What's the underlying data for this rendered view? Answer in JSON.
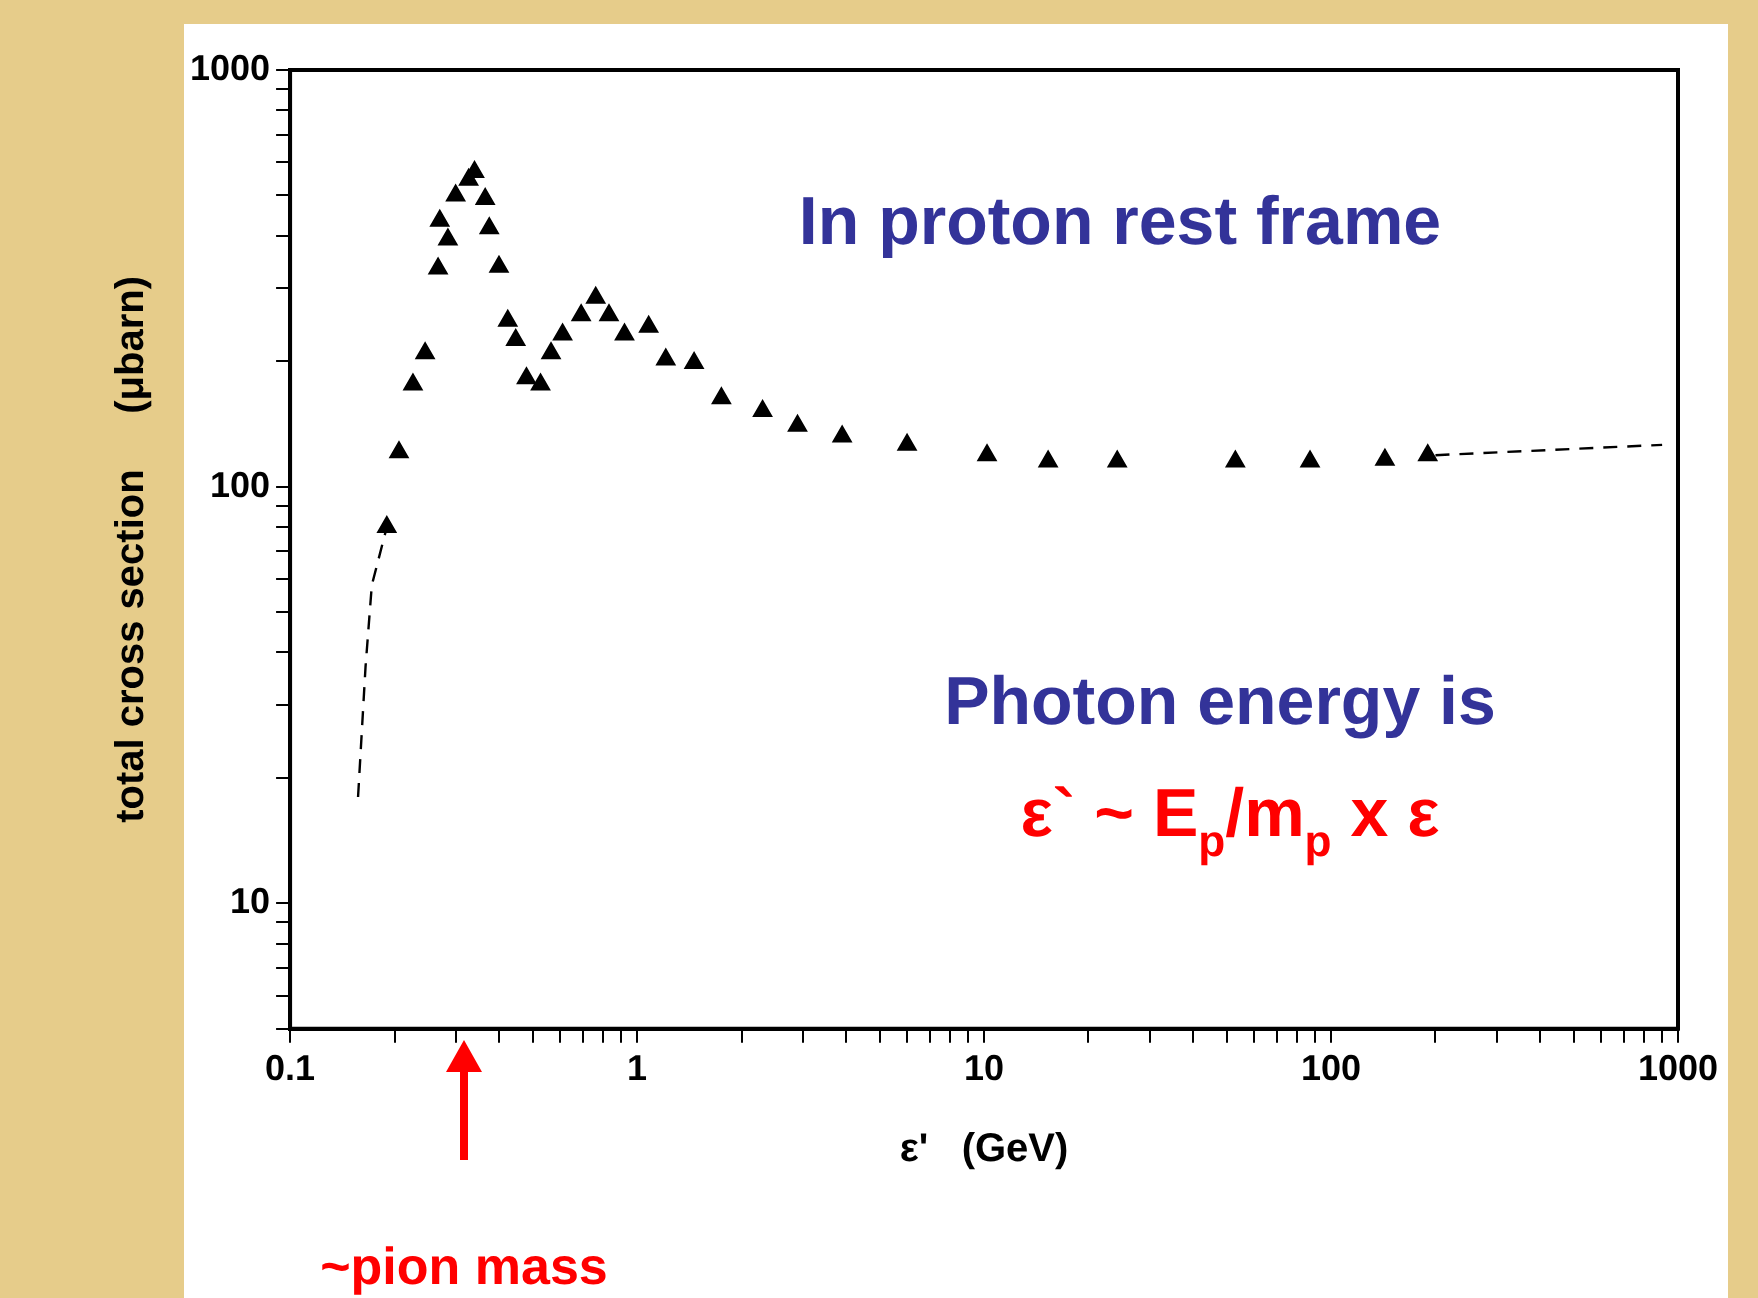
{
  "chart_data": {
    "type": "scatter",
    "xlabel": "ε'   (GeV)",
    "ylabel": "total cross section     (μbarn)",
    "log": "xy",
    "xlim": [
      0.1,
      1000
    ],
    "ylim": [
      5,
      1000
    ],
    "xticks": [
      0.1,
      {
        "value": 0.2,
        "label": null
      },
      {
        "value": 0.3,
        "label": null
      },
      {
        "value": 0.4,
        "label": null
      },
      {
        "value": 0.5,
        "label": null
      },
      {
        "value": 0.6,
        "label": null
      },
      {
        "value": 0.7,
        "label": null
      },
      {
        "value": 0.8,
        "label": null
      },
      {
        "value": 0.9,
        "label": null
      },
      1,
      {
        "value": 2,
        "label": null
      },
      {
        "value": 3,
        "label": null
      },
      {
        "value": 4,
        "label": null
      },
      {
        "value": 5,
        "label": null
      },
      {
        "value": 6,
        "label": null
      },
      {
        "value": 7,
        "label": null
      },
      {
        "value": 8,
        "label": null
      },
      {
        "value": 9,
        "label": null
      },
      10,
      {
        "value": 20,
        "label": null
      },
      {
        "value": 30,
        "label": null
      },
      {
        "value": 40,
        "label": null
      },
      {
        "value": 50,
        "label": null
      },
      {
        "value": 60,
        "label": null
      },
      {
        "value": 70,
        "label": null
      },
      {
        "value": 80,
        "label": null
      },
      {
        "value": 90,
        "label": null
      },
      100,
      {
        "value": 200,
        "label": null
      },
      {
        "value": 300,
        "label": null
      },
      {
        "value": 400,
        "label": null
      },
      {
        "value": 500,
        "label": null
      },
      {
        "value": 600,
        "label": null
      },
      {
        "value": 700,
        "label": null
      },
      {
        "value": 800,
        "label": null
      },
      {
        "value": 900,
        "label": null
      },
      1000
    ],
    "yticks": [
      {
        "value": 5,
        "label": null
      },
      {
        "value": 6,
        "label": null
      },
      {
        "value": 7,
        "label": null
      },
      {
        "value": 8,
        "label": null
      },
      {
        "value": 9,
        "label": null
      },
      10,
      {
        "value": 20,
        "label": null
      },
      {
        "value": 30,
        "label": null
      },
      {
        "value": 40,
        "label": null
      },
      {
        "value": 50,
        "label": null
      },
      {
        "value": 60,
        "label": null
      },
      {
        "value": 70,
        "label": null
      },
      {
        "value": 80,
        "label": null
      },
      {
        "value": 90,
        "label": null
      },
      100,
      {
        "value": 200,
        "label": null
      },
      {
        "value": 300,
        "label": null
      },
      {
        "value": 400,
        "label": null
      },
      {
        "value": 500,
        "label": null
      },
      {
        "value": 600,
        "label": null
      },
      {
        "value": 700,
        "label": null
      },
      {
        "value": 800,
        "label": null
      },
      {
        "value": 900,
        "label": null
      },
      1000
    ],
    "grid": false,
    "legend": false,
    "marker": "triangle",
    "series": [
      {
        "color": "#000000",
        "x": [
          0.19,
          0.206,
          0.226,
          0.245,
          0.267,
          0.27,
          0.285,
          0.3,
          0.327,
          0.34,
          0.365,
          0.375,
          0.4,
          0.424,
          0.447,
          0.48,
          0.527,
          0.565,
          0.61,
          0.69,
          0.76,
          0.83,
          0.92,
          1.08,
          1.21,
          1.46,
          1.75,
          2.3,
          2.9,
          3.9,
          6,
          10.2,
          15.3,
          24.2,
          53,
          87,
          143,
          190
        ],
        "values": [
          80,
          121,
          176,
          209,
          334,
          435,
          392,
          500,
          545,
          569,
          490,
          417,
          337,
          250,
          225,
          182,
          176,
          209,
          232,
          258,
          284,
          258,
          232,
          242,
          202,
          198,
          163,
          152,
          140,
          132,
          126,
          119,
          115,
          115,
          115,
          115,
          116,
          119
        ]
      },
      {
        "type": "line",
        "color": "#000000",
        "line_style": "dashed",
        "marker": "none",
        "x": [
          0.157,
          0.165,
          0.172,
          0.19
        ],
        "values": [
          18,
          37,
          58,
          80
        ]
      },
      {
        "type": "line",
        "color": "#000000",
        "line_style": "dashed",
        "marker": "none",
        "x": [
          200,
          900
        ],
        "values": [
          119,
          126
        ]
      }
    ],
    "annotations": [
      "In proton rest frame",
      "Photon energy is",
      "ε` ~ E$_{p}$/m$_{p}$ x ε",
      "~pion mass"
    ]
  }
}
